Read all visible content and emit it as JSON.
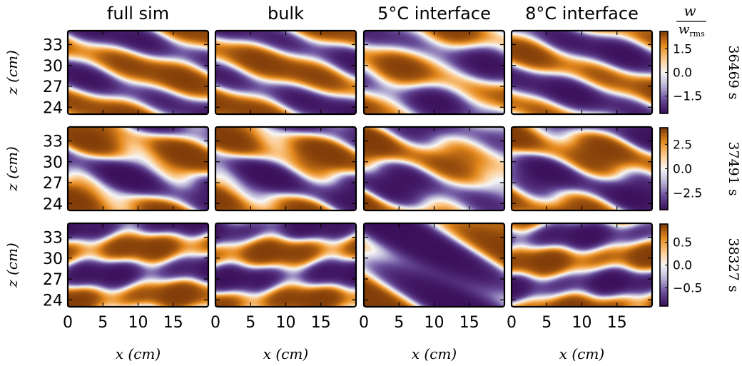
{
  "figure": {
    "column_titles": [
      "full sim",
      "bulk",
      "5°C interface",
      "8°C interface"
    ],
    "colorbar_label": {
      "numerator": "w",
      "denominator_base": "w",
      "denominator_sub": "rms"
    }
  },
  "chart_data": {
    "type": "heatmap",
    "colormap": [
      "#3b0f5a",
      "#6a4f9c",
      "#b9b4d6",
      "#f7f7f7",
      "#fcc98a",
      "#e58a1e",
      "#7f3b08"
    ],
    "rows": [
      {
        "time_label": "36469 s",
        "colorbar_ticks": [
          1.5,
          0.0,
          -1.5
        ],
        "colorbar_tick_labels": [
          "1.5",
          "0.0",
          "−1.5"
        ],
        "vlim": [
          -2.6,
          2.6
        ]
      },
      {
        "time_label": "37491 s",
        "colorbar_ticks": [
          2.5,
          0.0,
          -2.5
        ],
        "colorbar_tick_labels": [
          "2.5",
          "0.0",
          "−2.5"
        ],
        "vlim": [
          -4.2,
          4.2
        ]
      },
      {
        "time_label": "38327 s",
        "colorbar_ticks": [
          0.5,
          0.0,
          -0.5
        ],
        "colorbar_tick_labels": [
          "0.5",
          "0.0",
          "−0.5"
        ],
        "vlim": [
          -0.9,
          0.9
        ]
      }
    ],
    "xlabel": "x (cm)",
    "ylabel": "z (cm)",
    "xlim": [
      0,
      20
    ],
    "ylim": [
      23,
      35
    ],
    "xticks": [
      0,
      5,
      10,
      15
    ],
    "yticks": [
      33,
      30,
      27,
      24
    ]
  }
}
